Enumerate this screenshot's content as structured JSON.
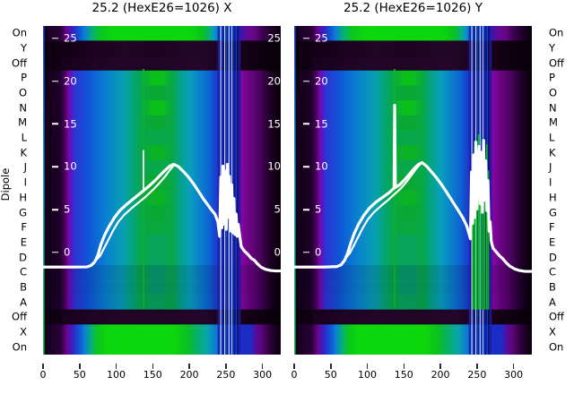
{
  "chart_data": {
    "type": "heatmap",
    "ylabel": "Dipole",
    "xlim": [
      0,
      325
    ],
    "x_ticks": [
      0,
      50,
      100,
      150,
      200,
      250,
      300
    ],
    "value_ticks": [
      25,
      20,
      15,
      10,
      5,
      0
    ],
    "value_axis": {
      "v0_frac": 0.6894,
      "unit_frac": 0.02605
    },
    "row_labels": [
      "On",
      "Y",
      "Off",
      "P",
      "O",
      "N",
      "M",
      "L",
      "K",
      "J",
      "I",
      "H",
      "G",
      "F",
      "E",
      "D",
      "C",
      "B",
      "A",
      "Off",
      "X",
      "On"
    ],
    "rows": [
      {
        "label": "On",
        "type": "brightTop"
      },
      {
        "label": "Y",
        "type": "black"
      },
      {
        "label": "Off",
        "type": "black",
        "patch": true
      },
      {
        "label": "P",
        "type": "normal",
        "center": "#0cc01a"
      },
      {
        "label": "O",
        "type": "normal",
        "center": "#0aa832"
      },
      {
        "label": "N",
        "type": "normal",
        "center": "#0cc01a"
      },
      {
        "label": "M",
        "type": "normal",
        "center": "#0aa832"
      },
      {
        "label": "L",
        "type": "normal",
        "center": "#08a74a"
      },
      {
        "label": "K",
        "type": "normal",
        "center": "#0bb224"
      },
      {
        "label": "J",
        "type": "normal",
        "center": "#08a74a"
      },
      {
        "label": "I",
        "type": "normal",
        "center": "#0aa832"
      },
      {
        "label": "H",
        "type": "normal",
        "center": "#0bb224"
      },
      {
        "label": "G",
        "type": "normal",
        "center": "#0aa832"
      },
      {
        "label": "F",
        "type": "normal",
        "center": "#09a73e"
      },
      {
        "label": "E",
        "type": "normal",
        "center": "#08a45c"
      },
      {
        "label": "D",
        "type": "normal",
        "center": "#08a45c"
      },
      {
        "label": "C",
        "type": "normal",
        "center": "#079e6e",
        "dim": 0.12
      },
      {
        "label": "B",
        "type": "normal",
        "center": "#079e6e",
        "dim": 0.12
      },
      {
        "label": "A",
        "type": "normal",
        "center": "#08a45c",
        "dim": 0.1
      },
      {
        "label": "Off",
        "type": "black",
        "patch": true
      },
      {
        "label": "X",
        "type": "bright"
      },
      {
        "label": "On",
        "type": "bright"
      }
    ],
    "colormap": {
      "normal": [
        [
          0,
          "#100016"
        ],
        [
          0.07,
          "#1e0128"
        ],
        [
          0.094,
          "#4a0260"
        ],
        [
          0.106,
          "#7c03a2"
        ],
        [
          0.118,
          "#5517c6"
        ],
        [
          0.135,
          "#2b35d4"
        ],
        [
          0.19,
          "#0f55d6"
        ],
        [
          0.26,
          "#0a7ed2"
        ],
        [
          0.335,
          "#079eb4"
        ],
        [
          0.375,
          "#05a47e"
        ],
        [
          0.415,
          "#07a748"
        ],
        [
          0.46,
          "CENTER"
        ],
        [
          0.5,
          "CENTER"
        ],
        [
          0.545,
          "#07a748"
        ],
        [
          0.57,
          "#06a47e"
        ],
        [
          0.62,
          "#089ec0"
        ],
        [
          0.7,
          "#0d62d4"
        ],
        [
          0.735,
          "#1b38c8"
        ],
        [
          0.755,
          "#2a1db0"
        ],
        [
          0.825,
          "#3c129e"
        ],
        [
          0.838,
          "#8406a2"
        ],
        [
          0.862,
          "#6e0486"
        ],
        [
          0.9,
          "#55026a"
        ],
        [
          0.935,
          "#330140"
        ],
        [
          0.968,
          "#150119"
        ],
        [
          1,
          "#08000b"
        ]
      ],
      "bright": [
        [
          0,
          "#12001a"
        ],
        [
          0.075,
          "#2a0138"
        ],
        [
          0.1,
          "#6e0292"
        ],
        [
          0.12,
          "#3b1cc0"
        ],
        [
          0.145,
          "#1545d4"
        ],
        [
          0.175,
          "#0a80d4"
        ],
        [
          0.205,
          "#07b26e"
        ],
        [
          0.23,
          "#0cc61c"
        ],
        [
          0.27,
          "#0cd60c"
        ],
        [
          0.55,
          "#0cd60c"
        ],
        [
          0.6,
          "#0ac31c"
        ],
        [
          0.645,
          "#08b062"
        ],
        [
          0.69,
          "#08a4ac"
        ],
        [
          0.725,
          "#0b7ed0"
        ],
        [
          0.755,
          "#0f4cd6"
        ],
        [
          0.775,
          "#1430c8"
        ],
        [
          0.875,
          "#1b2cc4"
        ],
        [
          0.895,
          "#5c0a9c"
        ],
        [
          0.925,
          "#56046e"
        ],
        [
          0.955,
          "#2a0136"
        ],
        [
          1,
          "#0a000e"
        ]
      ],
      "brightTop": [
        [
          0,
          "#12001a"
        ],
        [
          0.075,
          "#2a0138"
        ],
        [
          0.1,
          "#6e0292"
        ],
        [
          0.12,
          "#3b1cc0"
        ],
        [
          0.145,
          "#1545d4"
        ],
        [
          0.175,
          "#0a80d4"
        ],
        [
          0.21,
          "#07b26e"
        ],
        [
          0.245,
          "#0cc61c"
        ],
        [
          0.3,
          "#0cd60c"
        ],
        [
          0.62,
          "#0cd60c"
        ],
        [
          0.67,
          "#0ac31c"
        ],
        [
          0.7,
          "#08b073"
        ],
        [
          0.72,
          "#0898c8"
        ],
        [
          0.74,
          "#0b6ad4"
        ],
        [
          0.775,
          "#1034c8"
        ],
        [
          0.82,
          "#1c22b4"
        ],
        [
          0.85,
          "#5c0a9c"
        ],
        [
          0.885,
          "#6a0588"
        ],
        [
          0.925,
          "#3c0250"
        ],
        [
          0.965,
          "#1a0122"
        ],
        [
          1,
          "#0a000e"
        ]
      ],
      "black": [
        [
          0,
          "#0b000e"
        ],
        [
          0.1,
          "#140016"
        ],
        [
          0.22,
          "#1c0320"
        ],
        [
          0.35,
          "#200524"
        ],
        [
          0.5,
          "#1d0422"
        ],
        [
          0.65,
          "#220628"
        ],
        [
          0.78,
          "#1a0320"
        ],
        [
          0.88,
          "#120114"
        ],
        [
          1,
          "#070008"
        ]
      ]
    },
    "edge_strip": [
      "#1d3fd0",
      "#18a8c0",
      "#17c13d"
    ],
    "vline": {
      "x": 137.3,
      "color": "#12b428",
      "y0": 0.131,
      "y1": 0.862
    },
    "stripes": [
      {
        "x": 238.8,
        "w": 1.2,
        "c": "#2a1db6"
      },
      {
        "x": 240.6,
        "w": 1.0,
        "c": "#0a1188"
      },
      {
        "x": 242.2,
        "w": 1.2,
        "c": "#cfe4ff"
      },
      {
        "x": 244.0,
        "w": 1.8,
        "c": "#0d2cc2"
      },
      {
        "x": 246.4,
        "w": 0.9,
        "c": "#070c62"
      },
      {
        "x": 247.8,
        "w": 1.0,
        "c": "#e8f3ff"
      },
      {
        "x": 249.4,
        "w": 1.8,
        "c": "#0f3ed0"
      },
      {
        "x": 251.8,
        "w": 1.0,
        "c": "#0a1078"
      },
      {
        "x": 253.4,
        "w": 1.4,
        "c": "#a8d6f6"
      },
      {
        "x": 255.4,
        "w": 1.8,
        "c": "#0e34c6"
      },
      {
        "x": 257.8,
        "w": 0.9,
        "c": "#f2f9ff"
      },
      {
        "x": 259.2,
        "w": 1.8,
        "c": "#0c2cba"
      },
      {
        "x": 261.6,
        "w": 1.0,
        "c": "#081070"
      },
      {
        "x": 263.2,
        "w": 1.4,
        "c": "#0e46ce"
      },
      {
        "x": 265.2,
        "w": 1.0,
        "c": "#060a56"
      },
      {
        "x": 266.8,
        "w": 1.4,
        "c": "#1120a8"
      },
      {
        "x": 268.8,
        "w": 1.0,
        "c": "#3a14a0"
      }
    ],
    "green_bars": {
      "color": "#0cbc16",
      "bars": [
        {
          "x": 243.6,
          "w": 1.4,
          "y0": 0.4,
          "y1": 0.863
        },
        {
          "x": 246.0,
          "w": 1.8,
          "y0": 0.35,
          "y1": 0.863
        },
        {
          "x": 248.8,
          "w": 1.4,
          "y0": 0.42,
          "y1": 0.863
        },
        {
          "x": 251.4,
          "w": 2.0,
          "y0": 0.33,
          "y1": 0.863
        },
        {
          "x": 254.4,
          "w": 1.4,
          "y0": 0.38,
          "y1": 0.863
        },
        {
          "x": 257.0,
          "w": 1.8,
          "y0": 0.34,
          "y1": 0.863
        },
        {
          "x": 259.8,
          "w": 1.4,
          "y0": 0.4,
          "y1": 0.863
        },
        {
          "x": 262.4,
          "w": 1.6,
          "y0": 0.36,
          "y1": 0.863
        },
        {
          "x": 265.0,
          "w": 1.2,
          "y0": 0.44,
          "y1": 0.863
        }
      ]
    },
    "panels": [
      {
        "label": "X",
        "title": "25.2 (HexE26=1026) X",
        "right_value_labels": true,
        "green_bars": false,
        "spike": {
          "x": 137.3,
          "from": 7.2,
          "to": 11.9,
          "width": 1.8
        },
        "curve": [
          [
            0,
            -1.7
          ],
          [
            40,
            -1.7
          ],
          [
            60,
            -1.68
          ],
          [
            66,
            -1.5
          ],
          [
            71,
            -1.05
          ],
          [
            75,
            -0.3
          ],
          [
            79,
            0.9
          ],
          [
            84,
            2.0
          ],
          [
            90,
            3.0
          ],
          [
            97,
            4.0
          ],
          [
            105,
            4.9
          ],
          [
            114,
            5.6
          ],
          [
            124,
            6.3
          ],
          [
            134,
            7.0
          ],
          [
            144,
            7.7
          ],
          [
            153,
            8.4
          ],
          [
            161,
            9.1
          ],
          [
            168,
            9.7
          ],
          [
            174,
            10.15
          ],
          [
            179,
            10.3
          ],
          [
            185,
            10.05
          ],
          [
            191,
            9.55
          ],
          [
            198,
            8.9
          ],
          [
            206,
            8.0
          ],
          [
            213,
            7.1
          ],
          [
            219,
            6.3
          ],
          [
            225,
            5.6
          ],
          [
            230,
            5.0
          ],
          [
            235,
            4.5
          ],
          [
            239,
            3.6
          ],
          [
            241.5,
            1.9
          ],
          [
            243,
            8.8
          ],
          [
            244.5,
            2.9
          ],
          [
            246,
            10.1
          ],
          [
            247.5,
            3.3
          ],
          [
            249,
            9.5
          ],
          [
            250.5,
            2.7
          ],
          [
            252,
            10.3
          ],
          [
            253.5,
            4.1
          ],
          [
            255,
            8.9
          ],
          [
            256.5,
            2.5
          ],
          [
            258,
            7.9
          ],
          [
            259.5,
            2.3
          ],
          [
            261,
            6.3
          ],
          [
            262.5,
            2.1
          ],
          [
            264,
            4.5
          ],
          [
            265.5,
            1.9
          ],
          [
            267,
            3.3
          ],
          [
            269,
            1.9
          ],
          [
            271,
            0.7
          ],
          [
            275,
            0.2
          ],
          [
            280,
            -0.2
          ],
          [
            285,
            -0.7
          ],
          [
            289,
            -0.9
          ],
          [
            293,
            -1.3
          ],
          [
            298,
            -1.7
          ],
          [
            304,
            -1.95
          ],
          [
            311,
            -2.1
          ],
          [
            318,
            -2.15
          ],
          [
            325,
            -2.15
          ]
        ],
        "curve2": [
          [
            71,
            -1.0
          ],
          [
            78,
            -0.4
          ],
          [
            84,
            0.6
          ],
          [
            90,
            1.6
          ],
          [
            96,
            2.6
          ],
          [
            103,
            3.6
          ],
          [
            111,
            4.4
          ],
          [
            120,
            5.1
          ],
          [
            130,
            5.8
          ],
          [
            140,
            6.5
          ],
          [
            150,
            7.3
          ],
          [
            159,
            8.1
          ],
          [
            167,
            8.9
          ],
          [
            173,
            9.6
          ],
          [
            178,
            10.1
          ]
        ]
      },
      {
        "label": "Y",
        "title": "25.2 (HexE26=1026) Y",
        "right_value_labels": false,
        "green_bars": true,
        "curve": [
          [
            0,
            -1.7
          ],
          [
            40,
            -1.7
          ],
          [
            58,
            -1.65
          ],
          [
            64,
            -1.45
          ],
          [
            69,
            -0.9
          ],
          [
            73,
            -0.1
          ],
          [
            77,
            1.0
          ],
          [
            82,
            2.2
          ],
          [
            88,
            3.3
          ],
          [
            95,
            4.3
          ],
          [
            103,
            5.2
          ],
          [
            112,
            5.9
          ],
          [
            122,
            6.5
          ],
          [
            130,
            7.0
          ],
          [
            135,
            7.4
          ],
          [
            136.6,
            7.5
          ],
          [
            137.4,
            17.2
          ],
          [
            138.4,
            7.6
          ],
          [
            144,
            7.9
          ],
          [
            151,
            8.5
          ],
          [
            158,
            9.2
          ],
          [
            165,
            9.9
          ],
          [
            170,
            10.3
          ],
          [
            175,
            10.5
          ],
          [
            181,
            10.1
          ],
          [
            187,
            9.5
          ],
          [
            194,
            8.8
          ],
          [
            201,
            8.0
          ],
          [
            208,
            7.1
          ],
          [
            214,
            6.3
          ],
          [
            220,
            5.5
          ],
          [
            226,
            4.7
          ],
          [
            231,
            4.0
          ],
          [
            236,
            3.1
          ],
          [
            239,
            2.2
          ],
          [
            241,
            1.6
          ],
          [
            242.5,
            9.4
          ],
          [
            244,
            3.4
          ],
          [
            245.5,
            11.4
          ],
          [
            247,
            4.1
          ],
          [
            248.5,
            12.9
          ],
          [
            250,
            5.1
          ],
          [
            251.5,
            10.4
          ],
          [
            253,
            12.4
          ],
          [
            254.5,
            5.7
          ],
          [
            256,
            11.7
          ],
          [
            257.5,
            4.7
          ],
          [
            259,
            13.1
          ],
          [
            260.5,
            6.1
          ],
          [
            262,
            10.7
          ],
          [
            263.5,
            4.9
          ],
          [
            265,
            8.4
          ],
          [
            266.5,
            2.5
          ],
          [
            268,
            3.6
          ],
          [
            269.5,
            1.3
          ],
          [
            272,
            0.5
          ],
          [
            276,
            0.1
          ],
          [
            281,
            -0.4
          ],
          [
            285,
            -0.7
          ],
          [
            290,
            -1.2
          ],
          [
            295,
            -1.6
          ],
          [
            301,
            -1.9
          ],
          [
            308,
            -2.1
          ],
          [
            316,
            -2.2
          ],
          [
            325,
            -2.2
          ]
        ],
        "curve2": [
          [
            69,
            -0.8
          ],
          [
            76,
            -0.1
          ],
          [
            82,
            0.9
          ],
          [
            88,
            1.9
          ],
          [
            94,
            2.9
          ],
          [
            101,
            3.9
          ],
          [
            109,
            4.7
          ],
          [
            118,
            5.4
          ],
          [
            128,
            6.1
          ],
          [
            137,
            6.8
          ],
          [
            146,
            7.5
          ],
          [
            154,
            8.3
          ],
          [
            161,
            9.1
          ],
          [
            167,
            9.8
          ],
          [
            172,
            10.3
          ]
        ]
      }
    ]
  }
}
